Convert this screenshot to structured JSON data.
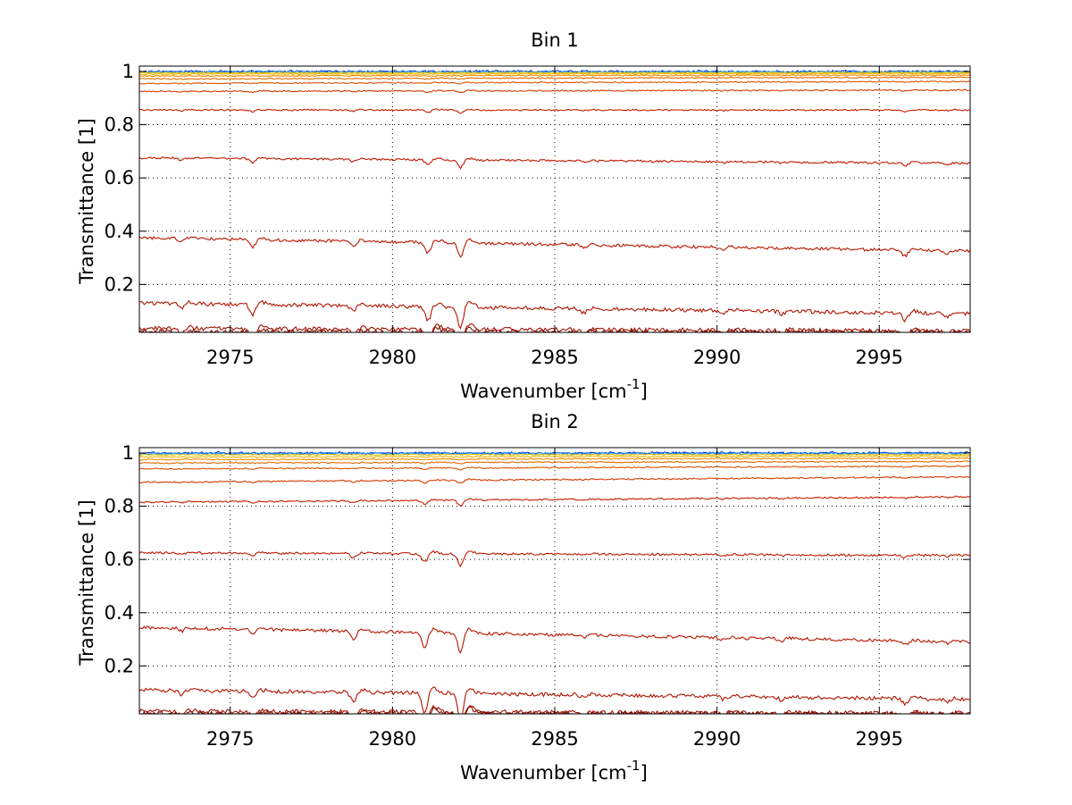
{
  "figure": {
    "background": "#ffffff"
  },
  "chart_data": [
    {
      "type": "line",
      "title": "Bin 1",
      "xlabel": "Wavenumber [cm",
      "xlabel_sup": "-1",
      "xlabel_end": "]",
      "ylabel": "Transmittance [1]",
      "xlim": [
        2972.2,
        2997.8
      ],
      "ylim": [
        0.02,
        1.02
      ],
      "xticks": [
        2975,
        2980,
        2985,
        2990,
        2995
      ],
      "xtick_labels": [
        "2975",
        "2980",
        "2985",
        "2990",
        "2995"
      ],
      "yticks": [
        0.2,
        0.4,
        0.6,
        0.8,
        1
      ],
      "ytick_labels": [
        "0.2",
        "0.4",
        "0.6",
        "0.8",
        "1"
      ],
      "grid": true,
      "absorption_lines": [
        {
          "x": 2973.5,
          "depth": 0.5
        },
        {
          "x": 2975.7,
          "depth": 1.0
        },
        {
          "x": 2978.8,
          "depth": 0.6
        },
        {
          "x": 2981.1,
          "depth": 1.4
        },
        {
          "x": 2982.1,
          "depth": 2.0
        },
        {
          "x": 2985.9,
          "depth": 0.4
        },
        {
          "x": 2990.2,
          "depth": 0.3
        },
        {
          "x": 2992.0,
          "depth": 0.3
        },
        {
          "x": 2995.8,
          "depth": 0.8
        },
        {
          "x": 2997.1,
          "depth": 0.3
        }
      ],
      "series": [
        {
          "start": 1.0,
          "end": 1.0,
          "color": "#0a3bd6"
        },
        {
          "start": 0.998,
          "end": 0.998,
          "color": "#1e90ff"
        },
        {
          "start": 0.995,
          "end": 0.996,
          "color": "#d9c200"
        },
        {
          "start": 0.99,
          "end": 0.992,
          "color": "#f2b400"
        },
        {
          "start": 0.983,
          "end": 0.986,
          "color": "#ee8a00"
        },
        {
          "start": 0.972,
          "end": 0.978,
          "color": "#e46a00"
        },
        {
          "start": 0.955,
          "end": 0.962,
          "color": "#dd5200"
        },
        {
          "start": 0.925,
          "end": 0.93,
          "color": "#d43a00"
        },
        {
          "start": 0.855,
          "end": 0.855,
          "color": "#c81e00"
        },
        {
          "start": 0.675,
          "end": 0.655,
          "color": "#c01800"
        },
        {
          "start": 0.375,
          "end": 0.325,
          "color": "#b81600"
        },
        {
          "start": 0.13,
          "end": 0.09,
          "color": "#b01400"
        },
        {
          "start": 0.035,
          "end": 0.025,
          "color": "#a01000"
        },
        {
          "start": 0.022,
          "end": 0.021,
          "color": "#8b0a00"
        }
      ]
    },
    {
      "type": "line",
      "title": "Bin 2",
      "xlabel": "Wavenumber [cm",
      "xlabel_sup": "-1",
      "xlabel_end": "]",
      "ylabel": "Transmittance [1]",
      "xlim": [
        2972.2,
        2997.8
      ],
      "ylim": [
        0.02,
        1.02
      ],
      "xticks": [
        2975,
        2980,
        2985,
        2990,
        2995
      ],
      "xtick_labels": [
        "2975",
        "2980",
        "2985",
        "2990",
        "2995"
      ],
      "yticks": [
        0.2,
        0.4,
        0.6,
        0.8,
        1
      ],
      "ytick_labels": [
        "0.2",
        "0.4",
        "0.6",
        "0.8",
        "1"
      ],
      "grid": true,
      "absorption_lines": [
        {
          "x": 2973.5,
          "depth": 0.4
        },
        {
          "x": 2975.7,
          "depth": 0.5
        },
        {
          "x": 2978.8,
          "depth": 1.0
        },
        {
          "x": 2981.0,
          "depth": 2.0
        },
        {
          "x": 2982.1,
          "depth": 2.6
        },
        {
          "x": 2985.9,
          "depth": 0.3
        },
        {
          "x": 2990.2,
          "depth": 0.3
        },
        {
          "x": 2992.0,
          "depth": 0.3
        },
        {
          "x": 2995.8,
          "depth": 0.5
        },
        {
          "x": 2997.1,
          "depth": 0.3
        }
      ],
      "series": [
        {
          "start": 1.0,
          "end": 1.0,
          "color": "#0a3bd6"
        },
        {
          "start": 0.998,
          "end": 0.998,
          "color": "#1e90ff"
        },
        {
          "start": 0.993,
          "end": 0.994,
          "color": "#d9c200"
        },
        {
          "start": 0.985,
          "end": 0.988,
          "color": "#f2b400"
        },
        {
          "start": 0.975,
          "end": 0.98,
          "color": "#ee8a00"
        },
        {
          "start": 0.962,
          "end": 0.968,
          "color": "#e46a00"
        },
        {
          "start": 0.94,
          "end": 0.95,
          "color": "#dd5200"
        },
        {
          "start": 0.89,
          "end": 0.91,
          "color": "#d43a00"
        },
        {
          "start": 0.815,
          "end": 0.835,
          "color": "#c81e00"
        },
        {
          "start": 0.625,
          "end": 0.615,
          "color": "#c01800"
        },
        {
          "start": 0.345,
          "end": 0.29,
          "color": "#b81600"
        },
        {
          "start": 0.11,
          "end": 0.075,
          "color": "#b01400"
        },
        {
          "start": 0.03,
          "end": 0.022,
          "color": "#a01000"
        },
        {
          "start": 0.021,
          "end": 0.02,
          "color": "#8b0a00"
        }
      ]
    }
  ]
}
